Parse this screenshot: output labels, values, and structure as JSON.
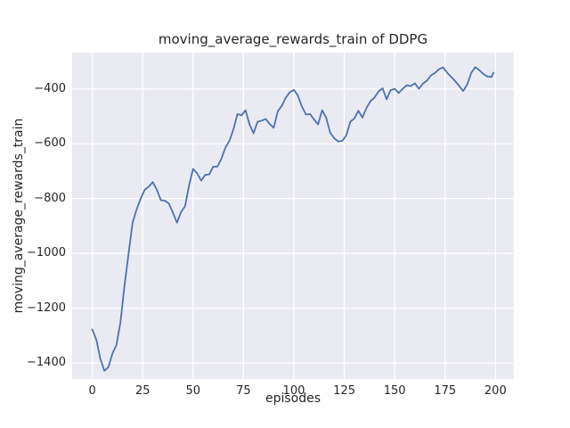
{
  "figure": {
    "title": "moving_average_rewards_train of DDPG",
    "xlabel": "episodes",
    "ylabel": "moving_average_rewards_train",
    "background_color": "#ffffff",
    "plot_background_color": "#eaeaf2",
    "grid_color": "#ffffff",
    "line_color": "#4c72b0",
    "text_color": "#262626"
  },
  "chart_data": {
    "type": "line",
    "title": "moving_average_rewards_train of DDPG",
    "xlabel": "episodes",
    "ylabel": "moving_average_rewards_train",
    "xlim": [
      -10,
      209
    ],
    "ylim": [
      -1458,
      -268
    ],
    "xticks": [
      0,
      25,
      50,
      75,
      100,
      125,
      150,
      175,
      200
    ],
    "yticks": [
      -400,
      -600,
      -800,
      -1000,
      -1200,
      -1400
    ],
    "grid": true,
    "legend": false,
    "series": [
      {
        "name": "moving_average_rewards_train",
        "color": "#4c72b0",
        "x": [
          0,
          2,
          4,
          6,
          8,
          10,
          12,
          14,
          16,
          18,
          20,
          22,
          24,
          26,
          28,
          30,
          32,
          34,
          36,
          38,
          40,
          42,
          44,
          46,
          48,
          50,
          52,
          54,
          56,
          58,
          60,
          62,
          64,
          66,
          68,
          70,
          72,
          74,
          76,
          78,
          80,
          82,
          84,
          86,
          88,
          90,
          92,
          94,
          96,
          98,
          100,
          102,
          104,
          106,
          108,
          110,
          112,
          114,
          116,
          118,
          120,
          122,
          124,
          126,
          128,
          130,
          132,
          134,
          136,
          138,
          140,
          142,
          144,
          146,
          148,
          150,
          152,
          154,
          156,
          158,
          160,
          162,
          164,
          166,
          168,
          170,
          172,
          174,
          176,
          178,
          180,
          182,
          184,
          186,
          188,
          190,
          192,
          194,
          196,
          198,
          199
        ],
        "y": [
          -1278,
          -1315,
          -1385,
          -1428,
          -1415,
          -1365,
          -1333,
          -1250,
          -1115,
          -1000,
          -888,
          -840,
          -800,
          -768,
          -757,
          -740,
          -768,
          -806,
          -808,
          -818,
          -852,
          -888,
          -850,
          -828,
          -752,
          -692,
          -708,
          -735,
          -714,
          -712,
          -684,
          -684,
          -656,
          -615,
          -590,
          -548,
          -492,
          -497,
          -478,
          -530,
          -562,
          -520,
          -516,
          -510,
          -528,
          -542,
          -482,
          -462,
          -432,
          -412,
          -404,
          -425,
          -465,
          -494,
          -492,
          -512,
          -530,
          -478,
          -505,
          -560,
          -580,
          -592,
          -590,
          -570,
          -520,
          -508,
          -480,
          -505,
          -470,
          -445,
          -432,
          -410,
          -398,
          -438,
          -405,
          -400,
          -415,
          -400,
          -387,
          -390,
          -380,
          -400,
          -381,
          -370,
          -351,
          -342,
          -328,
          -322,
          -341,
          -356,
          -372,
          -390,
          -408,
          -384,
          -341,
          -321,
          -332,
          -346,
          -355,
          -357,
          -341
        ]
      }
    ]
  }
}
